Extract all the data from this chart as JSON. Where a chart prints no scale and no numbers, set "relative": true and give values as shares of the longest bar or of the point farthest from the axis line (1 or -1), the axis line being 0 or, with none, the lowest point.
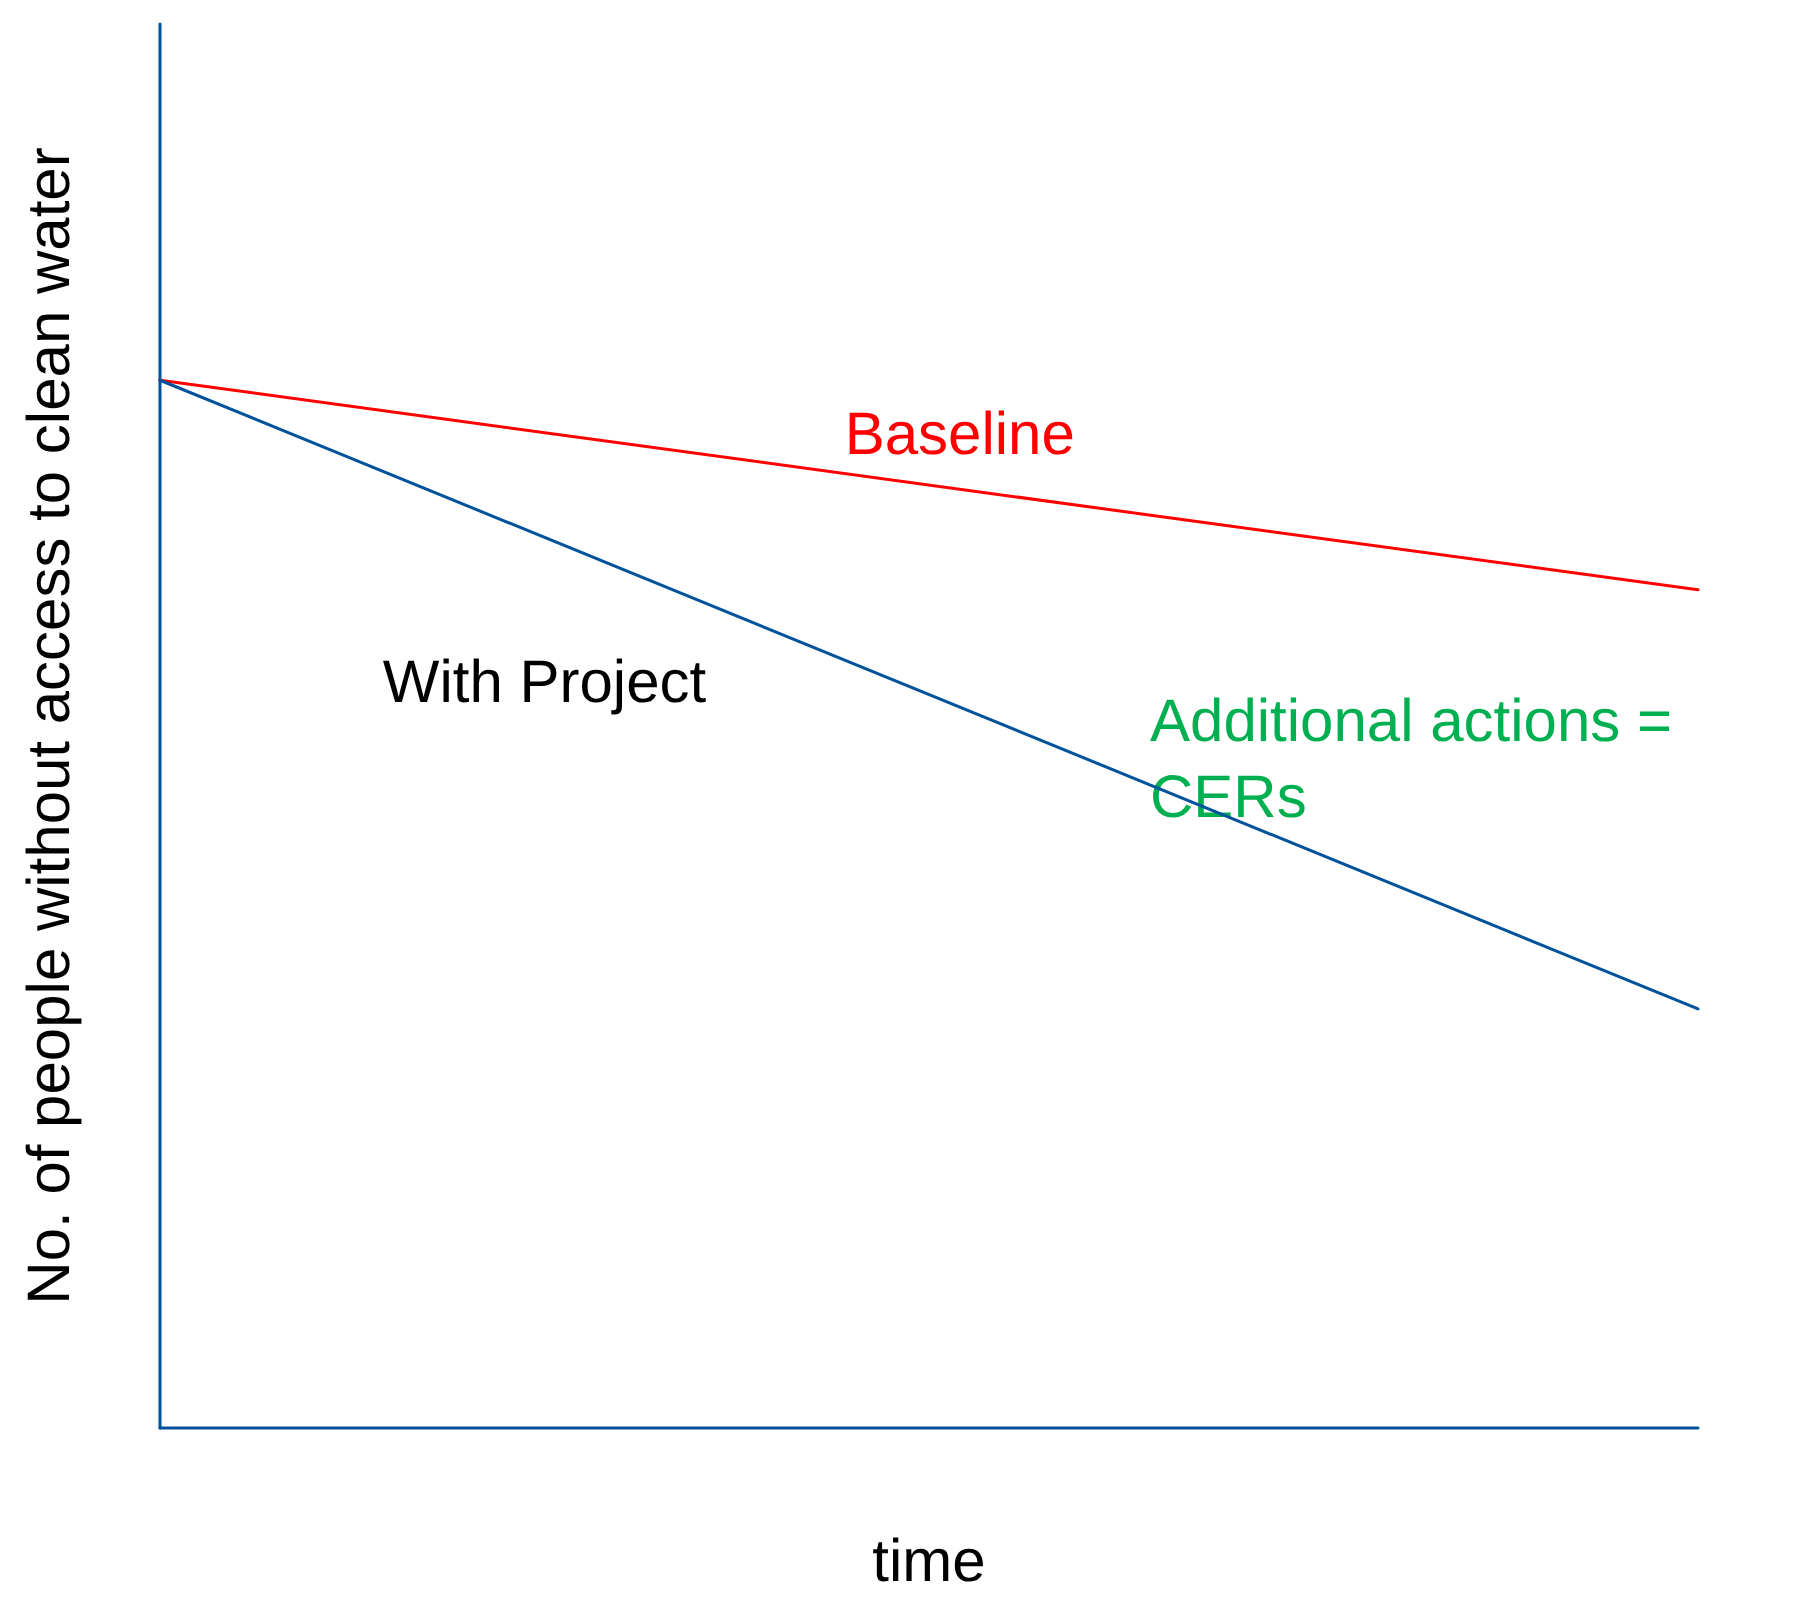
{
  "chart_data": {
    "type": "line",
    "relative": true,
    "categories": [
      null,
      null
    ],
    "xlabel": "time",
    "ylabel": "No. of people without access to clean water",
    "series": [
      {
        "name": "Baseline",
        "color": "#ff0000",
        "values": [
          1,
          0.8
        ]
      },
      {
        "name": "With Project",
        "color": "#00529b",
        "values": [
          1,
          0.4
        ]
      }
    ],
    "annotations": [
      "Additional actions = CERs"
    ],
    "grid": false,
    "legend": false,
    "marker": "none",
    "line_style": "solid"
  }
}
